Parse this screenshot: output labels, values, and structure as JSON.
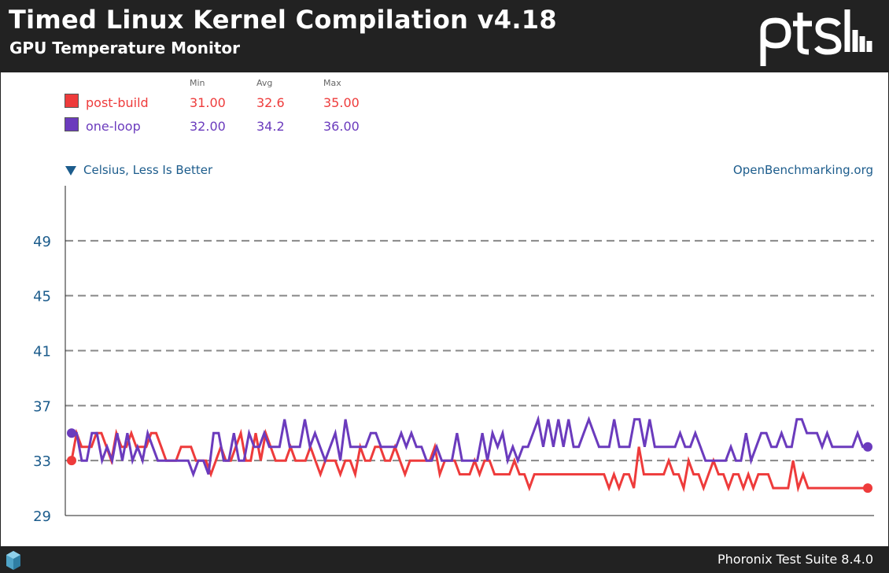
{
  "header": {
    "title": "Timed Linux Kernel Compilation v4.18",
    "subtitle": "GPU Temperature Monitor"
  },
  "legend": {
    "col_min": "Min",
    "col_avg": "Avg",
    "col_max": "Max",
    "rows": [
      {
        "name": "post-build",
        "min": "31.00",
        "avg": "32.6",
        "max": "35.00",
        "color": "#ee3b3b"
      },
      {
        "name": "one-loop",
        "min": "32.00",
        "avg": "34.2",
        "max": "36.00",
        "color": "#6b3bbd"
      }
    ]
  },
  "unit_label": "Celsius, Less Is Better",
  "source_label": "OpenBenchmarking.org",
  "footer": {
    "text": "Phoronix Test Suite 8.4.0"
  },
  "colors": {
    "background_dark": "#222222",
    "axis_text": "#1c5c8c",
    "grid": "#888888"
  },
  "chart_data": {
    "type": "line",
    "title": "Timed Linux Kernel Compilation v4.18",
    "subtitle": "GPU Temperature Monitor",
    "ylabel": "Celsius, Less Is Better",
    "ylim": [
      29,
      53
    ],
    "yticks": [
      29,
      33,
      37,
      41,
      45,
      49
    ],
    "grid": true,
    "legend_position": "top-left",
    "series": [
      {
        "name": "post-build",
        "color": "#ee3b3b",
        "values": [
          33,
          35,
          34,
          34,
          34,
          35,
          35,
          34,
          33,
          35,
          34,
          34,
          35,
          34,
          34,
          34,
          35,
          35,
          34,
          33,
          33,
          33,
          34,
          34,
          34,
          33,
          33,
          33,
          32,
          33,
          34,
          33,
          33,
          34,
          35,
          33,
          33,
          35,
          33,
          35,
          34,
          33,
          33,
          33,
          34,
          33,
          33,
          33,
          34,
          33,
          32,
          33,
          33,
          33,
          32,
          33,
          33,
          32,
          34,
          33,
          33,
          34,
          34,
          33,
          33,
          34,
          33,
          32,
          33,
          33,
          33,
          33,
          33,
          34,
          32,
          33,
          33,
          33,
          32,
          32,
          32,
          33,
          32,
          33,
          33,
          32,
          32,
          32,
          32,
          33,
          32,
          32,
          31,
          32,
          32,
          32,
          32,
          32,
          32,
          32,
          32,
          32,
          32,
          32,
          32,
          32,
          32,
          32,
          31,
          32,
          31,
          32,
          32,
          31,
          34,
          32,
          32,
          32,
          32,
          32,
          33,
          32,
          32,
          31,
          33,
          32,
          32,
          31,
          32,
          33,
          32,
          32,
          31,
          32,
          32,
          31,
          32,
          31,
          32,
          32,
          32,
          31,
          31,
          31,
          31,
          33,
          31,
          32,
          31,
          31,
          31,
          31,
          31,
          31,
          31,
          31,
          31,
          31,
          31,
          31,
          31
        ]
      },
      {
        "name": "one-loop",
        "color": "#6b3bbd",
        "values": [
          35,
          35,
          33,
          33,
          35,
          35,
          33,
          34,
          33,
          35,
          33,
          35,
          33,
          34,
          33,
          35,
          34,
          33,
          33,
          33,
          33,
          33,
          33,
          33,
          32,
          33,
          33,
          32,
          35,
          35,
          33,
          33,
          35,
          33,
          33,
          35,
          34,
          34,
          35,
          34,
          34,
          34,
          36,
          34,
          34,
          34,
          36,
          34,
          35,
          34,
          33,
          34,
          35,
          33,
          36,
          34,
          34,
          34,
          34,
          35,
          35,
          34,
          34,
          34,
          34,
          35,
          34,
          35,
          34,
          34,
          33,
          33,
          34,
          33,
          33,
          33,
          35,
          33,
          33,
          33,
          33,
          35,
          33,
          35,
          34,
          35,
          33,
          34,
          33,
          34,
          34,
          35,
          36,
          34,
          36,
          34,
          36,
          34,
          36,
          34,
          34,
          35,
          36,
          35,
          34,
          34,
          34,
          36,
          34,
          34,
          34,
          36,
          36,
          34,
          36,
          34,
          34,
          34,
          34,
          34,
          35,
          34,
          34,
          35,
          34,
          33,
          33,
          33,
          33,
          33,
          34,
          33,
          33,
          35,
          33,
          34,
          35,
          35,
          34,
          34,
          35,
          34,
          34,
          36,
          36,
          35,
          35,
          35,
          34,
          35,
          34,
          34,
          34,
          34,
          34,
          35,
          34,
          34
        ]
      }
    ]
  }
}
